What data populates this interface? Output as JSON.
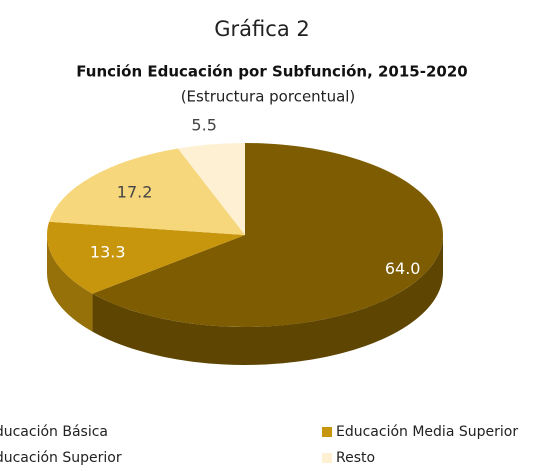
{
  "chart_data": {
    "type": "pie3d",
    "title": "Gráfica 2",
    "subtitle": "Función Educación por Subfunción, 2015-2020",
    "note": "(Estructura porcentual)",
    "categories": [
      "Educación Básica",
      "Educación Media Superior",
      "Educación Superior",
      "Resto"
    ],
    "values": [
      64.0,
      13.3,
      17.2,
      5.5
    ],
    "value_labels": [
      "64.0",
      "13.3",
      "17.2",
      "5.5"
    ],
    "colors": [
      "#7d5c02",
      "#c8960c",
      "#f6d77c",
      "#fdf0d3"
    ],
    "legend": "bottom"
  }
}
